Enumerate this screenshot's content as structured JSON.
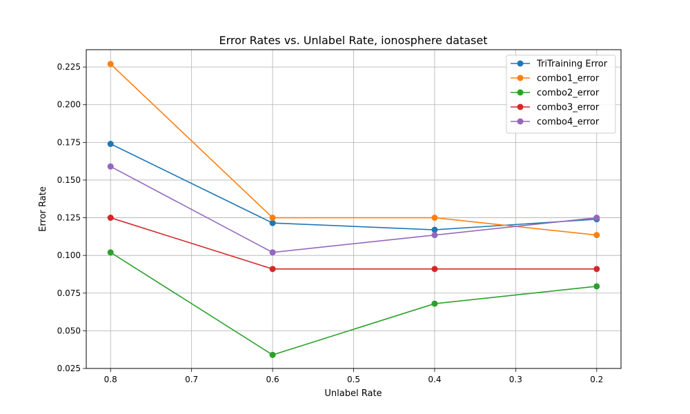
{
  "chart_data": {
    "type": "line",
    "title": "Error Rates vs. Unlabel Rate, ionosphere dataset",
    "xlabel": "Unlabel Rate",
    "ylabel": "Error Rate",
    "x": [
      0.8,
      0.6,
      0.4,
      0.2
    ],
    "xlim": [
      0.83,
      0.17
    ],
    "ylim": [
      0.025,
      0.2365
    ],
    "x_reversed": true,
    "xticks": [
      0.8,
      0.7,
      0.6,
      0.5,
      0.4,
      0.3,
      0.2
    ],
    "xtick_labels": [
      "0.8",
      "0.7",
      "0.6",
      "0.5",
      "0.4",
      "0.3",
      "0.2"
    ],
    "yticks": [
      0.025,
      0.05,
      0.075,
      0.1,
      0.125,
      0.15,
      0.175,
      0.2,
      0.225
    ],
    "ytick_labels": [
      "0.025",
      "0.050",
      "0.075",
      "0.100",
      "0.125",
      "0.150",
      "0.175",
      "0.200",
      "0.225"
    ],
    "grid": true,
    "legend_position": "top-right",
    "series": [
      {
        "name": "TriTraining Error",
        "color": "#1f77b4",
        "values": [
          0.174,
          0.1215,
          0.117,
          0.124
        ]
      },
      {
        "name": "combo1_error",
        "color": "#ff7f0e",
        "values": [
          0.227,
          0.125,
          0.125,
          0.1135
        ]
      },
      {
        "name": "combo2_error",
        "color": "#2ca02c",
        "values": [
          0.102,
          0.034,
          0.068,
          0.0795
        ]
      },
      {
        "name": "combo3_error",
        "color": "#d62728",
        "values": [
          0.125,
          0.091,
          0.091,
          0.091
        ]
      },
      {
        "name": "combo4_error",
        "color": "#9467bd",
        "values": [
          0.159,
          0.102,
          0.1135,
          0.125
        ]
      }
    ]
  }
}
